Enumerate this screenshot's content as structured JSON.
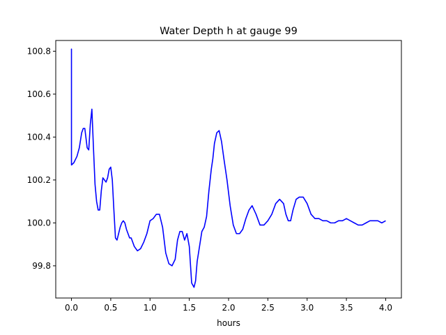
{
  "chart_data": {
    "type": "line",
    "title": "Water Depth h at gauge 99",
    "xlabel": "hours",
    "ylabel": "",
    "xlim": [
      -0.2,
      4.2
    ],
    "ylim": [
      99.65,
      100.85
    ],
    "xticks": [
      0.0,
      0.5,
      1.0,
      1.5,
      2.0,
      2.5,
      3.0,
      3.5,
      4.0
    ],
    "xtick_labels": [
      "0.0",
      "0.5",
      "1.0",
      "1.5",
      "2.0",
      "2.5",
      "3.0",
      "3.5",
      "4.0"
    ],
    "yticks": [
      99.8,
      100.0,
      100.2,
      100.4,
      100.6,
      100.8
    ],
    "ytick_labels": [
      "99.8",
      "100.0",
      "100.2",
      "100.4",
      "100.6",
      "100.8"
    ],
    "grid": false,
    "legend": "none",
    "series": [
      {
        "color": "#0000ff",
        "x": [
          0.0,
          0.0,
          0.0,
          0.03,
          0.07,
          0.1,
          0.13,
          0.15,
          0.17,
          0.2,
          0.22,
          0.24,
          0.26,
          0.28,
          0.3,
          0.32,
          0.34,
          0.36,
          0.38,
          0.4,
          0.42,
          0.44,
          0.46,
          0.48,
          0.5,
          0.52,
          0.54,
          0.56,
          0.58,
          0.6,
          0.62,
          0.64,
          0.66,
          0.68,
          0.7,
          0.72,
          0.74,
          0.76,
          0.8,
          0.84,
          0.88,
          0.92,
          0.96,
          1.0,
          1.04,
          1.08,
          1.12,
          1.16,
          1.2,
          1.24,
          1.28,
          1.32,
          1.35,
          1.38,
          1.41,
          1.44,
          1.47,
          1.5,
          1.53,
          1.56,
          1.58,
          1.6,
          1.63,
          1.66,
          1.69,
          1.72,
          1.75,
          1.78,
          1.8,
          1.82,
          1.85,
          1.88,
          1.91,
          1.94,
          1.98,
          2.02,
          2.06,
          2.1,
          2.14,
          2.18,
          2.22,
          2.26,
          2.3,
          2.35,
          2.4,
          2.45,
          2.5,
          2.55,
          2.6,
          2.65,
          2.7,
          2.73,
          2.76,
          2.79,
          2.82,
          2.86,
          2.9,
          2.95,
          3.0,
          3.05,
          3.1,
          3.15,
          3.2,
          3.25,
          3.3,
          3.35,
          3.4,
          3.45,
          3.5,
          3.55,
          3.6,
          3.65,
          3.7,
          3.75,
          3.8,
          3.85,
          3.9,
          3.95,
          4.0
        ],
        "y": [
          100.27,
          100.81,
          100.27,
          100.28,
          100.31,
          100.35,
          100.42,
          100.44,
          100.44,
          100.35,
          100.34,
          100.46,
          100.53,
          100.35,
          100.18,
          100.1,
          100.06,
          100.06,
          100.15,
          100.21,
          100.2,
          100.19,
          100.21,
          100.25,
          100.26,
          100.2,
          100.06,
          99.93,
          99.92,
          99.95,
          99.98,
          100.0,
          100.01,
          100.0,
          99.97,
          99.95,
          99.93,
          99.93,
          99.89,
          99.87,
          99.88,
          99.91,
          99.95,
          100.01,
          100.02,
          100.04,
          100.04,
          99.98,
          99.86,
          99.81,
          99.8,
          99.83,
          99.92,
          99.96,
          99.96,
          99.92,
          99.95,
          99.89,
          99.72,
          99.7,
          99.73,
          99.82,
          99.89,
          99.96,
          99.98,
          100.03,
          100.15,
          100.25,
          100.3,
          100.37,
          100.42,
          100.43,
          100.38,
          100.3,
          100.2,
          100.08,
          99.99,
          99.95,
          99.95,
          99.97,
          100.02,
          100.06,
          100.08,
          100.04,
          99.99,
          99.99,
          100.01,
          100.04,
          100.09,
          100.11,
          100.09,
          100.04,
          100.01,
          100.01,
          100.06,
          100.11,
          100.12,
          100.12,
          100.09,
          100.04,
          100.02,
          100.02,
          100.01,
          100.01,
          100.0,
          100.0,
          100.01,
          100.01,
          100.02,
          100.01,
          100.0,
          99.99,
          99.99,
          100.0,
          100.01,
          100.01,
          100.01,
          100.0,
          100.01
        ]
      }
    ]
  }
}
